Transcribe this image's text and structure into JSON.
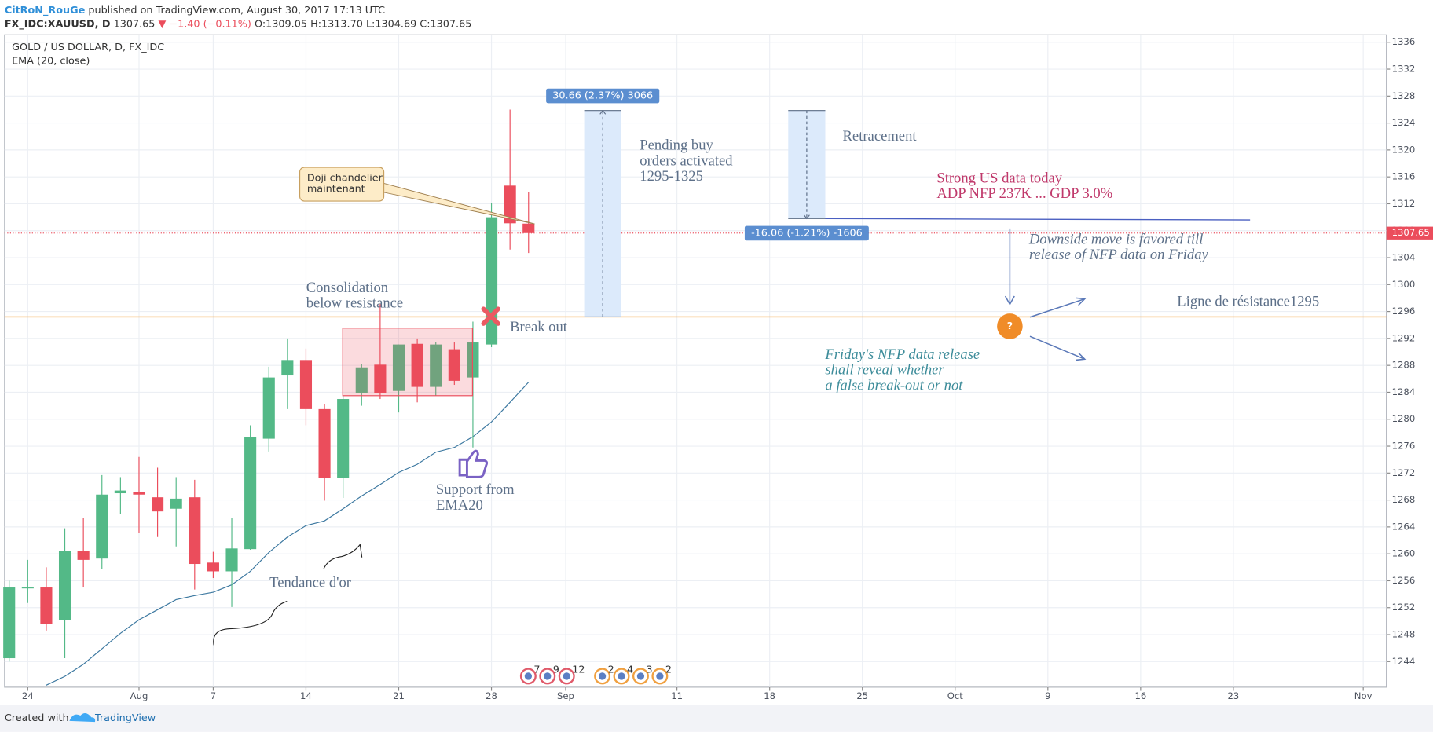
{
  "header": {
    "author": "CitRoN_RouGe",
    "published": "published on TradingView.com, August 30, 2017 17:13 UTC",
    "symbol": "FX_IDC:XAUUSD, D",
    "last": "1307.65",
    "change": "▼ −1.40 (−0.11%)",
    "ohlc": [
      "O:1309.05",
      "H:1313.70",
      "L:1304.69",
      "C:1307.65"
    ]
  },
  "chart_data": {
    "type": "candlestick",
    "title": "GOLD / US DOLLAR, D, FX_IDC",
    "x": [
      0,
      1,
      2,
      3,
      4,
      5,
      6,
      7,
      8,
      9,
      10,
      11,
      12,
      13,
      14,
      15,
      16,
      17,
      18,
      19,
      20,
      21,
      22,
      23,
      24,
      25,
      26,
      27,
      28
    ],
    "open": [
      1244.5,
      1254.9,
      1255.0,
      1250.2,
      1260.4,
      1259.3,
      1269.0,
      1269.2,
      1268.4,
      1266.7,
      1268.4,
      1258.7,
      1257.4,
      1260.7,
      1277.1,
      1286.5,
      1288.8,
      1281.5,
      1271.3,
      1283.9,
      1288.1,
      1284.2,
      1291.2,
      1284.8,
      1290.4,
      1286.2,
      1291.1,
      1314.7,
      1309.05
    ],
    "high": [
      1256.0,
      1259.1,
      1258.0,
      1263.8,
      1265.3,
      1271.7,
      1271.4,
      1274.4,
      1272.8,
      1271.4,
      1271.0,
      1260.3,
      1265.3,
      1279.1,
      1287.8,
      1292.0,
      1290.5,
      1282.3,
      1283.5,
      1288.2,
      1297.1,
      1291.1,
      1292.0,
      1291.5,
      1291.4,
      1294.5,
      1312.1,
      1326.0,
      1313.7
    ],
    "low": [
      1244.0,
      1252.7,
      1248.6,
      1244.5,
      1255.0,
      1257.8,
      1265.9,
      1263.1,
      1262.5,
      1261.1,
      1254.7,
      1256.4,
      1252.1,
      1260.6,
      1275.2,
      1281.5,
      1279.1,
      1267.9,
      1268.3,
      1282.0,
      1283.0,
      1281.0,
      1282.5,
      1283.5,
      1285.1,
      1275.8,
      1290.7,
      1305.2,
      1304.69
    ],
    "close": [
      1255.0,
      1255.0,
      1249.6,
      1260.4,
      1259.1,
      1268.8,
      1269.4,
      1268.8,
      1266.3,
      1268.2,
      1258.5,
      1257.4,
      1260.8,
      1277.4,
      1286.2,
      1288.8,
      1281.5,
      1271.3,
      1283.0,
      1287.7,
      1283.9,
      1291.1,
      1284.8,
      1291.1,
      1285.7,
      1291.4,
      1310.0,
      1309.1,
      1307.65
    ],
    "up_color": "#53b987",
    "down_color": "#eb4d5c",
    "ema": {
      "name": "EMA (20, close)",
      "color": "#3c78a0",
      "values": [
        null,
        null,
        1240.5,
        1241.8,
        1243.6,
        1245.9,
        1248.2,
        1250.2,
        1251.7,
        1253.2,
        1253.8,
        1254.3,
        1255.4,
        1257.4,
        1260.2,
        1262.5,
        1264.2,
        1264.9,
        1266.7,
        1268.6,
        1270.3,
        1272.1,
        1273.3,
        1275.1,
        1275.8,
        1277.4,
        1279.6,
        1282.5,
        1285.5
      ]
    },
    "xlim": [
      -0.25,
      74.25
    ],
    "xticks": [
      {
        "value": 1,
        "label": "24"
      },
      {
        "value": 7,
        "label": "Aug"
      },
      {
        "value": 11,
        "label": "7"
      },
      {
        "value": 16,
        "label": "14"
      },
      {
        "value": 21,
        "label": "21"
      },
      {
        "value": 26,
        "label": "28"
      },
      {
        "value": 30,
        "label": "Sep"
      },
      {
        "value": 36,
        "label": "11"
      },
      {
        "value": 41,
        "label": "18"
      },
      {
        "value": 46,
        "label": "25"
      },
      {
        "value": 51,
        "label": "Oct"
      },
      {
        "value": 56,
        "label": "9"
      },
      {
        "value": 61,
        "label": "16"
      },
      {
        "value": 66,
        "label": "23"
      },
      {
        "value": 73,
        "label": "Nov"
      }
    ],
    "ylim": [
      1240.2,
      1337.1
    ],
    "yticks": [
      1244,
      1248,
      1252,
      1256,
      1260,
      1264,
      1268,
      1272,
      1276,
      1280,
      1284,
      1288,
      1292,
      1296,
      1300,
      1304,
      1308,
      1312,
      1316,
      1320,
      1324,
      1328,
      1332,
      1336
    ],
    "grid": true,
    "last_price": 1307.65,
    "last_price_color": "#eb4d5c",
    "resistance": 1295.2,
    "resistance_color": "#f5a540",
    "measures": [
      {
        "x": [
          31,
          33
        ],
        "from": 1295.2,
        "to": 1325.86,
        "label": "30.66 (2.37%) 3066"
      },
      {
        "x": [
          42,
          44
        ],
        "from": 1325.86,
        "to": 1309.8,
        "label": "-16.06 (-1.21%) -1606"
      }
    ],
    "trend_line": {
      "x": [
        44,
        66.9
      ],
      "y": [
        1309.8,
        1309.6
      ],
      "color": "#4a5fc1"
    }
  },
  "annotations": {
    "doji": [
      "Doji chandelier",
      "maintenant"
    ],
    "consolidation": [
      "Consolidation",
      "below resistance"
    ],
    "break_out": "Break out",
    "support": [
      "Support from",
      "EMA20"
    ],
    "trend": "Tendance d'or",
    "pending": [
      "Pending buy",
      "orders activated",
      "1295-1325"
    ],
    "retracement": "Retracement",
    "strong": [
      "Strong US data today",
      "ADP NFP 237K ... GDP 3.0%"
    ],
    "downside": [
      "Downside move is favored till",
      "release of NFP data on Friday"
    ],
    "resistance_label": "Ligne de résistance1295",
    "friday": [
      "Friday's NFP data release",
      "shall reveal whether",
      "a false break-out or not"
    ]
  },
  "events": [
    "7",
    "9",
    "12",
    "2",
    "4",
    "3",
    "2"
  ],
  "footer": {
    "created": "Created with",
    "brand": "TradingView"
  }
}
